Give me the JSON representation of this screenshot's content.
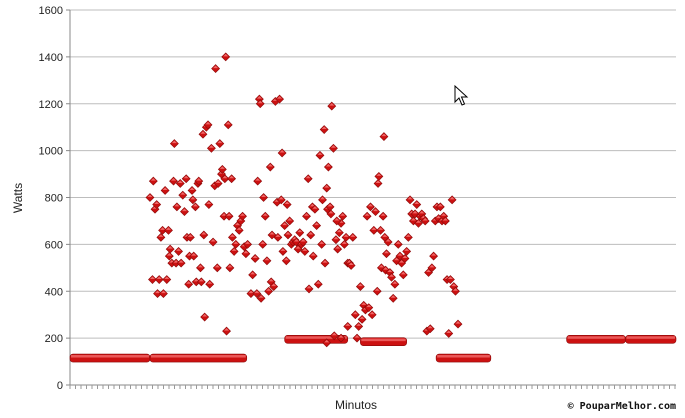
{
  "chart_data": {
    "type": "scatter",
    "title": "",
    "xlabel": "Minutos",
    "ylabel": "Watts",
    "ylim": [
      0,
      1600
    ],
    "xlim": [
      0,
      720
    ],
    "yticks": [
      "0",
      "200",
      "400",
      "600",
      "800",
      "1000",
      "1200",
      "1400",
      "1600"
    ],
    "grid": "horizontal",
    "legend": "none",
    "marker_color": "#cc1111",
    "copyright": "© PouparMelhor.com",
    "baseline_segments": [
      {
        "x_start": 0,
        "x_end": 95,
        "y": 115
      },
      {
        "x_start": 95,
        "x_end": 210,
        "y": 115
      },
      {
        "x_start": 435,
        "x_end": 500,
        "y": 115
      },
      {
        "x_start": 590,
        "x_end": 660,
        "y": 195
      },
      {
        "x_start": 660,
        "x_end": 720,
        "y": 195
      },
      {
        "x_start": 255,
        "x_end": 330,
        "y": 195
      },
      {
        "x_start": 345,
        "x_end": 400,
        "y": 185
      }
    ],
    "points": [
      [
        95,
        800
      ],
      [
        98,
        450
      ],
      [
        99,
        870
      ],
      [
        101,
        750
      ],
      [
        103,
        770
      ],
      [
        104,
        390
      ],
      [
        106,
        450
      ],
      [
        108,
        630
      ],
      [
        110,
        660
      ],
      [
        111,
        390
      ],
      [
        113,
        830
      ],
      [
        115,
        450
      ],
      [
        117,
        660
      ],
      [
        118,
        550
      ],
      [
        119,
        580
      ],
      [
        121,
        520
      ],
      [
        123,
        870
      ],
      [
        124,
        1030
      ],
      [
        126,
        520
      ],
      [
        127,
        760
      ],
      [
        129,
        570
      ],
      [
        131,
        860
      ],
      [
        132,
        520
      ],
      [
        134,
        810
      ],
      [
        136,
        740
      ],
      [
        138,
        880
      ],
      [
        139,
        630
      ],
      [
        141,
        430
      ],
      [
        142,
        550
      ],
      [
        143,
        630
      ],
      [
        145,
        830
      ],
      [
        146,
        790
      ],
      [
        147,
        550
      ],
      [
        149,
        760
      ],
      [
        150,
        440
      ],
      [
        152,
        860
      ],
      [
        153,
        870
      ],
      [
        155,
        500
      ],
      [
        156,
        440
      ],
      [
        158,
        1070
      ],
      [
        159,
        640
      ],
      [
        160,
        290
      ],
      [
        162,
        1100
      ],
      [
        164,
        1110
      ],
      [
        165,
        770
      ],
      [
        166,
        430
      ],
      [
        168,
        1010
      ],
      [
        170,
        610
      ],
      [
        172,
        850
      ],
      [
        173,
        1350
      ],
      [
        175,
        500
      ],
      [
        176,
        860
      ],
      [
        178,
        1030
      ],
      [
        180,
        900
      ],
      [
        181,
        920
      ],
      [
        183,
        720
      ],
      [
        184,
        880
      ],
      [
        185,
        1400
      ],
      [
        186,
        230
      ],
      [
        188,
        1110
      ],
      [
        189,
        720
      ],
      [
        190,
        500
      ],
      [
        192,
        880
      ],
      [
        193,
        630
      ],
      [
        195,
        570
      ],
      [
        197,
        600
      ],
      [
        199,
        680
      ],
      [
        201,
        660
      ],
      [
        203,
        700
      ],
      [
        205,
        720
      ],
      [
        207,
        590
      ],
      [
        209,
        560
      ],
      [
        211,
        600
      ],
      [
        215,
        390
      ],
      [
        217,
        470
      ],
      [
        220,
        540
      ],
      [
        222,
        390
      ],
      [
        223,
        870
      ],
      [
        225,
        1220
      ],
      [
        226,
        1200
      ],
      [
        227,
        370
      ],
      [
        229,
        600
      ],
      [
        230,
        800
      ],
      [
        232,
        720
      ],
      [
        234,
        530
      ],
      [
        236,
        400
      ],
      [
        238,
        930
      ],
      [
        239,
        440
      ],
      [
        240,
        640
      ],
      [
        242,
        420
      ],
      [
        244,
        1210
      ],
      [
        246,
        780
      ],
      [
        247,
        630
      ],
      [
        249,
        1220
      ],
      [
        251,
        790
      ],
      [
        252,
        990
      ],
      [
        253,
        570
      ],
      [
        255,
        680
      ],
      [
        257,
        530
      ],
      [
        258,
        770
      ],
      [
        259,
        640
      ],
      [
        261,
        700
      ],
      [
        263,
        600
      ],
      [
        265,
        610
      ],
      [
        267,
        620
      ],
      [
        269,
        610
      ],
      [
        271,
        580
      ],
      [
        273,
        650
      ],
      [
        275,
        600
      ],
      [
        277,
        610
      ],
      [
        279,
        570
      ],
      [
        281,
        720
      ],
      [
        283,
        880
      ],
      [
        284,
        410
      ],
      [
        286,
        640
      ],
      [
        288,
        760
      ],
      [
        289,
        550
      ],
      [
        291,
        750
      ],
      [
        293,
        680
      ],
      [
        295,
        430
      ],
      [
        297,
        980
      ],
      [
        299,
        600
      ],
      [
        300,
        790
      ],
      [
        302,
        1090
      ],
      [
        303,
        520
      ],
      [
        305,
        840
      ],
      [
        306,
        750
      ],
      [
        307,
        930
      ],
      [
        309,
        760
      ],
      [
        310,
        730
      ],
      [
        311,
        1190
      ],
      [
        313,
        1010
      ],
      [
        314,
        210
      ],
      [
        316,
        620
      ],
      [
        318,
        580
      ],
      [
        320,
        650
      ],
      [
        322,
        690
      ],
      [
        324,
        720
      ],
      [
        326,
        600
      ],
      [
        328,
        630
      ],
      [
        330,
        520
      ],
      [
        332,
        520
      ],
      [
        334,
        510
      ],
      [
        336,
        630
      ],
      [
        339,
        300
      ],
      [
        341,
        200
      ],
      [
        343,
        250
      ],
      [
        345,
        420
      ],
      [
        347,
        280
      ],
      [
        349,
        340
      ],
      [
        351,
        320
      ],
      [
        353,
        720
      ],
      [
        355,
        330
      ],
      [
        357,
        760
      ],
      [
        359,
        300
      ],
      [
        361,
        660
      ],
      [
        363,
        740
      ],
      [
        365,
        400
      ],
      [
        366,
        860
      ],
      [
        367,
        890
      ],
      [
        369,
        660
      ],
      [
        370,
        500
      ],
      [
        372,
        720
      ],
      [
        373,
        1060
      ],
      [
        374,
        630
      ],
      [
        375,
        490
      ],
      [
        376,
        560
      ],
      [
        378,
        610
      ],
      [
        380,
        480
      ],
      [
        382,
        460
      ],
      [
        384,
        370
      ],
      [
        386,
        430
      ],
      [
        388,
        530
      ],
      [
        390,
        600
      ],
      [
        392,
        550
      ],
      [
        394,
        520
      ],
      [
        396,
        470
      ],
      [
        398,
        540
      ],
      [
        400,
        570
      ],
      [
        402,
        630
      ],
      [
        404,
        790
      ],
      [
        406,
        730
      ],
      [
        408,
        700
      ],
      [
        410,
        730
      ],
      [
        412,
        770
      ],
      [
        414,
        690
      ],
      [
        416,
        720
      ],
      [
        418,
        730
      ],
      [
        420,
        710
      ],
      [
        422,
        700
      ],
      [
        424,
        230
      ],
      [
        426,
        480
      ],
      [
        428,
        240
      ],
      [
        430,
        500
      ],
      [
        432,
        550
      ],
      [
        434,
        700
      ],
      [
        436,
        760
      ],
      [
        438,
        710
      ],
      [
        440,
        760
      ],
      [
        442,
        700
      ],
      [
        444,
        720
      ],
      [
        446,
        700
      ],
      [
        448,
        450
      ],
      [
        450,
        220
      ],
      [
        452,
        450
      ],
      [
        454,
        790
      ],
      [
        456,
        420
      ],
      [
        458,
        400
      ],
      [
        461,
        260
      ],
      [
        305,
        180
      ],
      [
        317,
        700
      ],
      [
        330,
        250
      ],
      [
        322,
        200
      ]
    ]
  }
}
